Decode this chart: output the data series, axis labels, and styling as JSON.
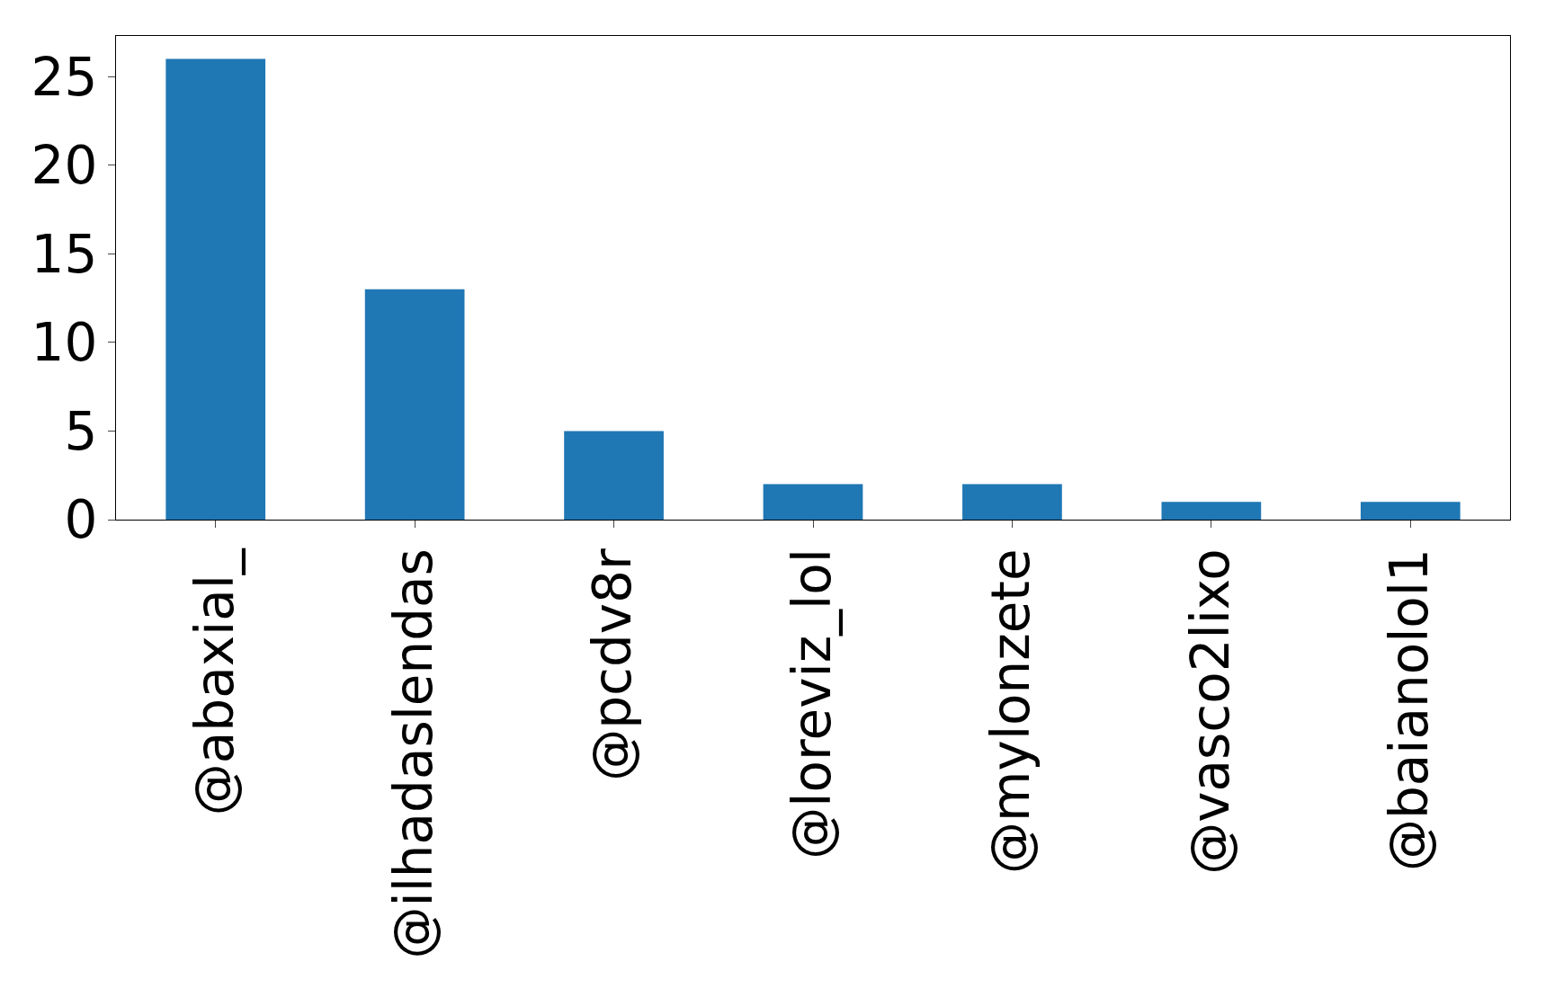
{
  "chart_data": {
    "type": "bar",
    "categories": [
      "@abaxial_",
      "@ilhadaslendas",
      "@pcdv8r",
      "@loreviz_lol",
      "@mylonzete",
      "@vasco2lixo",
      "@baianolol1"
    ],
    "values": [
      26,
      13,
      5,
      2,
      2,
      1,
      1
    ],
    "color": "#1f77b4",
    "ylim": [
      0,
      27.3
    ],
    "yticks": [
      0,
      5,
      10,
      15,
      20,
      25
    ],
    "grid": false
  }
}
